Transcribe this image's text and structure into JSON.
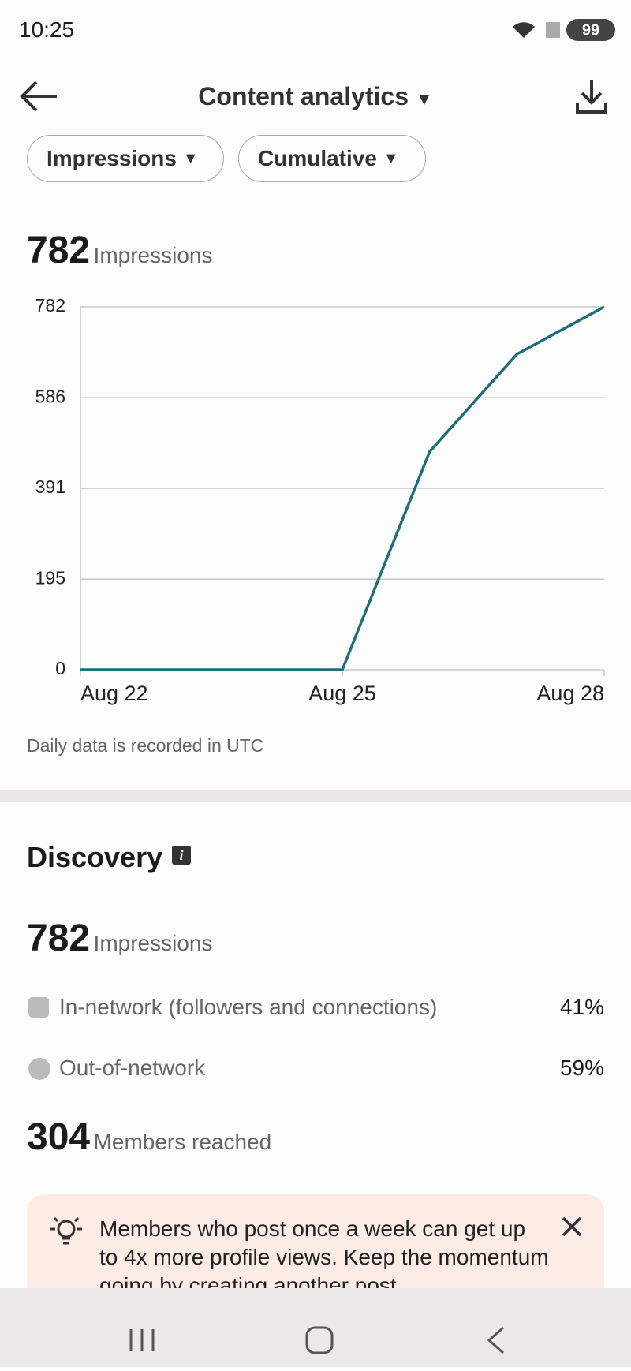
{
  "status_bar": {
    "time": "10:25",
    "battery": "99"
  },
  "header": {
    "title": "Content analytics"
  },
  "filters": [
    "Impressions",
    "Cumulative"
  ],
  "summary": {
    "value": "782",
    "label": "Impressions"
  },
  "chart_data": {
    "type": "line",
    "categories": [
      "Aug 22",
      null,
      null,
      "Aug 25",
      null,
      null,
      "Aug 28"
    ],
    "series": [
      {
        "name": "Impressions",
        "color": "#1f6e78",
        "values": [
          0,
          0,
          0,
          0,
          470,
          680,
          782
        ]
      }
    ],
    "ylim": [
      0,
      782
    ],
    "yticks": [
      0,
      195,
      391,
      586,
      782
    ],
    "grid": true,
    "note": "Daily data is recorded in UTC"
  },
  "discovery": {
    "title": "Discovery",
    "impressions": {
      "value": "782",
      "label": "Impressions"
    },
    "rows": [
      {
        "label": "In-network (followers and connections)",
        "value": "41%"
      },
      {
        "label": "Out-of-network",
        "value": "59%"
      }
    ],
    "members": {
      "value": "304",
      "label": "Members reached"
    }
  },
  "tip": {
    "text": "Members who post once a week can get up to 4x more profile views. Keep the momentum going by creating another post."
  }
}
